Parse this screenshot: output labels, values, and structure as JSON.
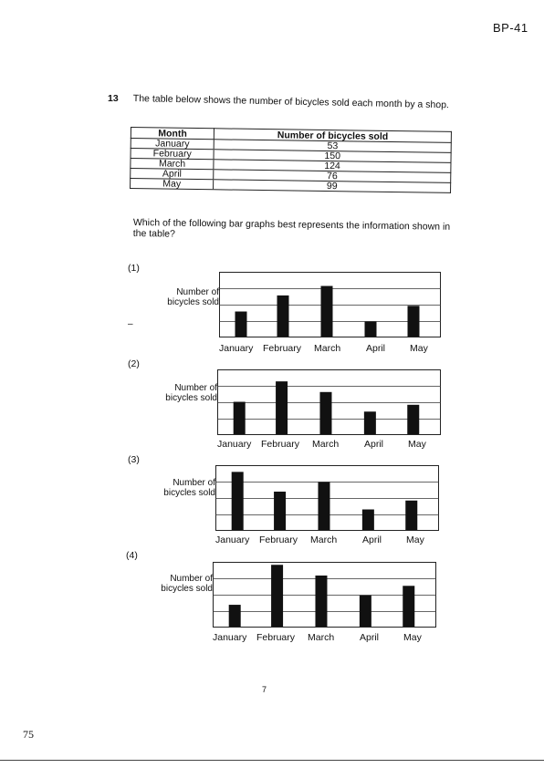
{
  "header": {
    "code": "BP-41"
  },
  "question": {
    "number": "13",
    "text": "The table below shows the number of bicycles sold each month by a shop.",
    "prompt": "Which of the following bar graphs best represents the information shown in the table?"
  },
  "table": {
    "headers": [
      "Month",
      "Number of bicycles sold"
    ],
    "rows": [
      [
        "January",
        "53"
      ],
      [
        "February",
        "150"
      ],
      [
        "March",
        "124"
      ],
      [
        "April",
        "76"
      ],
      [
        "May",
        "99"
      ]
    ]
  },
  "chart_data": [
    {
      "type": "bar",
      "label": "(1)",
      "ylabel": "Number of bicycles sold",
      "categories": [
        "January",
        "February",
        "March",
        "April",
        "May"
      ],
      "values": [
        53,
        87,
        107,
        32,
        65
      ],
      "ylim": [
        0,
        135
      ]
    },
    {
      "type": "bar",
      "label": "(2)",
      "ylabel": "Number of bicycles sold",
      "categories": [
        "January",
        "February",
        "March",
        "April",
        "May"
      ],
      "values": [
        76,
        124,
        99,
        53,
        69
      ],
      "ylim": [
        0,
        150
      ]
    },
    {
      "type": "bar",
      "label": "(3)",
      "ylabel": "Number of bicycles sold",
      "categories": [
        "January",
        "February",
        "March",
        "April",
        "May"
      ],
      "values": [
        150,
        99,
        124,
        53,
        76
      ],
      "ylim": [
        0,
        165
      ]
    },
    {
      "type": "bar",
      "label": "(4)",
      "ylabel": "Number of bicycles sold",
      "categories": [
        "January",
        "February",
        "March",
        "April",
        "May"
      ],
      "values": [
        53,
        150,
        124,
        76,
        99
      ],
      "ylim": [
        0,
        155
      ]
    }
  ],
  "footer": {
    "page_number": "7",
    "side_number": "75"
  }
}
